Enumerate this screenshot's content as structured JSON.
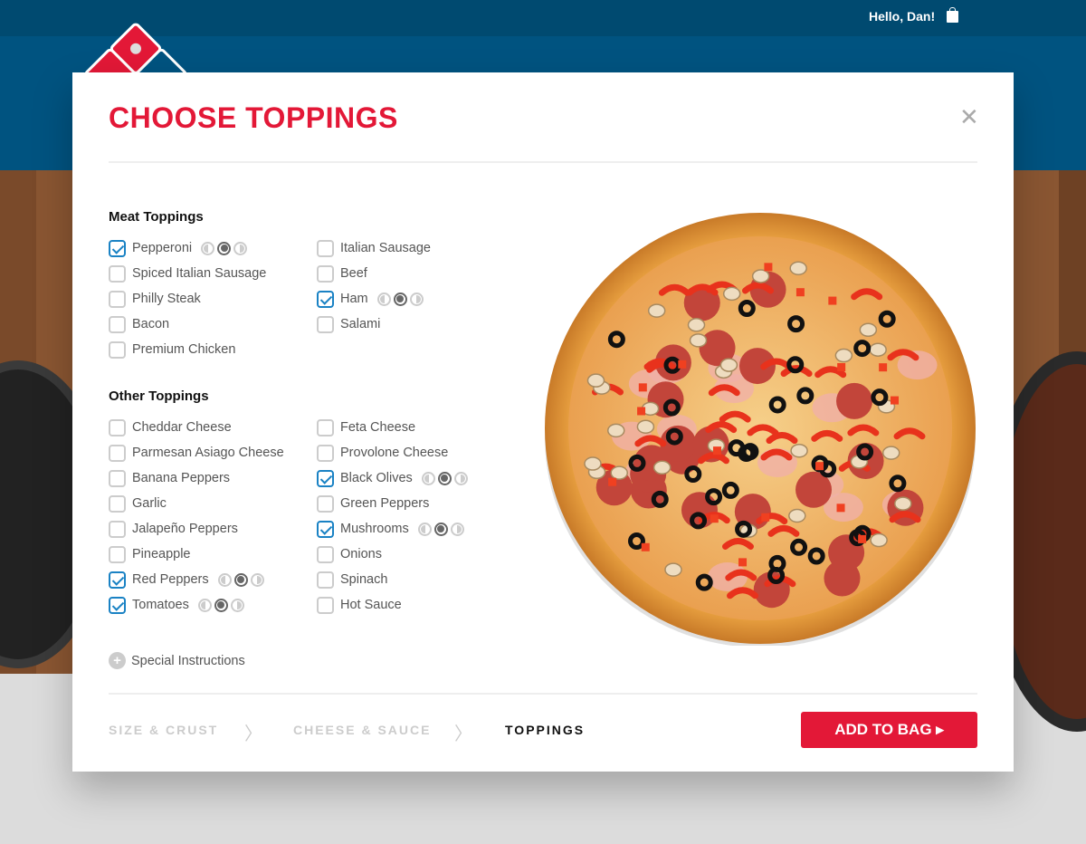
{
  "header": {
    "greeting": "Hello, Dan!",
    "bag_icon": "shopping-bag-icon"
  },
  "modal": {
    "title": "CHOOSE TOPPINGS",
    "close_icon": "close-icon",
    "meat": {
      "label": "Meat Toppings",
      "left": [
        {
          "name": "Pepperoni",
          "checked": true
        },
        {
          "name": "Spiced Italian Sausage",
          "checked": false
        },
        {
          "name": "Philly Steak",
          "checked": false
        },
        {
          "name": "Bacon",
          "checked": false
        },
        {
          "name": "Premium Chicken",
          "checked": false
        }
      ],
      "right": [
        {
          "name": "Italian Sausage",
          "checked": false
        },
        {
          "name": "Beef",
          "checked": false
        },
        {
          "name": "Ham",
          "checked": true
        },
        {
          "name": "Salami",
          "checked": false
        }
      ]
    },
    "other": {
      "label": "Other Toppings",
      "left": [
        {
          "name": "Cheddar Cheese",
          "checked": false
        },
        {
          "name": "Parmesan Asiago Cheese",
          "checked": false
        },
        {
          "name": "Banana Peppers",
          "checked": false
        },
        {
          "name": "Garlic",
          "checked": false
        },
        {
          "name": "Jalapeño Peppers",
          "checked": false
        },
        {
          "name": "Pineapple",
          "checked": false
        },
        {
          "name": "Red Peppers",
          "checked": true
        },
        {
          "name": "Tomatoes",
          "checked": true
        }
      ],
      "right": [
        {
          "name": "Feta Cheese",
          "checked": false
        },
        {
          "name": "Provolone Cheese",
          "checked": false
        },
        {
          "name": "Black Olives",
          "checked": true
        },
        {
          "name": "Green Peppers",
          "checked": false
        },
        {
          "name": "Mushrooms",
          "checked": true
        },
        {
          "name": "Onions",
          "checked": false
        },
        {
          "name": "Spinach",
          "checked": false
        },
        {
          "name": "Hot Sauce",
          "checked": false
        }
      ]
    },
    "placement_selected": "whole",
    "special_instructions": "Special Instructions",
    "steps": [
      {
        "label": "SIZE & CRUST",
        "current": false
      },
      {
        "label": "CHEESE & SAUCE",
        "current": false
      },
      {
        "label": "TOPPINGS",
        "current": true
      }
    ],
    "add_to_bag": "ADD TO BAG ▸"
  },
  "colors": {
    "brand_red": "#e31837",
    "brand_blue": "#005380",
    "check_blue": "#1a82c4"
  }
}
